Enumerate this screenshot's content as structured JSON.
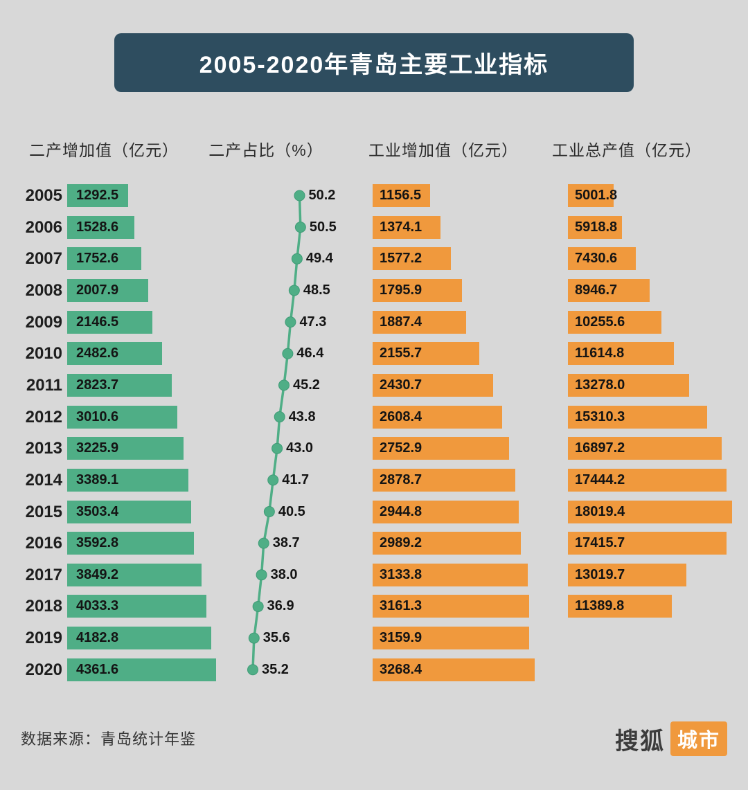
{
  "title": "2005-2020年青岛主要工业指标",
  "footer": {
    "source": "数据来源：青岛统计年鉴"
  },
  "logo": {
    "sohu": "搜狐",
    "city": "城市"
  },
  "colors": {
    "background": "#D8D8D8",
    "title_bg": "#2E4D5F",
    "green": "#4FAE86",
    "orange": "#F0993D",
    "text_dark": "#141414"
  },
  "chart_data": {
    "type": "bar",
    "orientation": "horizontal",
    "title": "2005-2020年青岛主要工业指标",
    "value_labels": true,
    "grid": false,
    "legend_position": "column-headers",
    "categories": [
      2005,
      2006,
      2007,
      2008,
      2009,
      2010,
      2011,
      2012,
      2013,
      2014,
      2015,
      2016,
      2017,
      2018,
      2019,
      2020
    ],
    "series": [
      {
        "name": "二产增加值（亿元）",
        "type": "bar",
        "color": "#4FAE86",
        "values": [
          "1292.5",
          "1528.6",
          "1752.6",
          "2007.9",
          "2146.5",
          "2482.6",
          "2823.7",
          "3010.6",
          "3225.9",
          "3389.1",
          "3503.4",
          "3592.8",
          "3849.2",
          "4033.3",
          "4182.8",
          "4361.6"
        ]
      },
      {
        "name": "二产占比（%）",
        "type": "line",
        "color": "#4FAE86",
        "values": [
          "50.2",
          "50.5",
          "49.4",
          "48.5",
          "47.3",
          "46.4",
          "45.2",
          "43.8",
          "43.0",
          "41.7",
          "40.5",
          "38.7",
          "38.0",
          "36.9",
          "35.6",
          "35.2"
        ]
      },
      {
        "name": "工业增加值（亿元）",
        "type": "bar",
        "color": "#F0993D",
        "values": [
          "1156.5",
          "1374.1",
          "1577.2",
          "1795.9",
          "1887.4",
          "2155.7",
          "2430.7",
          "2608.4",
          "2752.9",
          "2878.7",
          "2944.8",
          "2989.2",
          "3133.8",
          "3161.3",
          "3159.9",
          "3268.4"
        ]
      },
      {
        "name": "工业总产值（亿元）",
        "type": "bar",
        "color": "#F0993D",
        "values": [
          "5001.8",
          "5918.8",
          "7430.6",
          "8946.7",
          "10255.6",
          "11614.8",
          "13278.0",
          "15310.3",
          "16897.2",
          "17444.2",
          "18019.4",
          "17415.7",
          "13019.7",
          "11389.8",
          null,
          null
        ]
      }
    ]
  }
}
